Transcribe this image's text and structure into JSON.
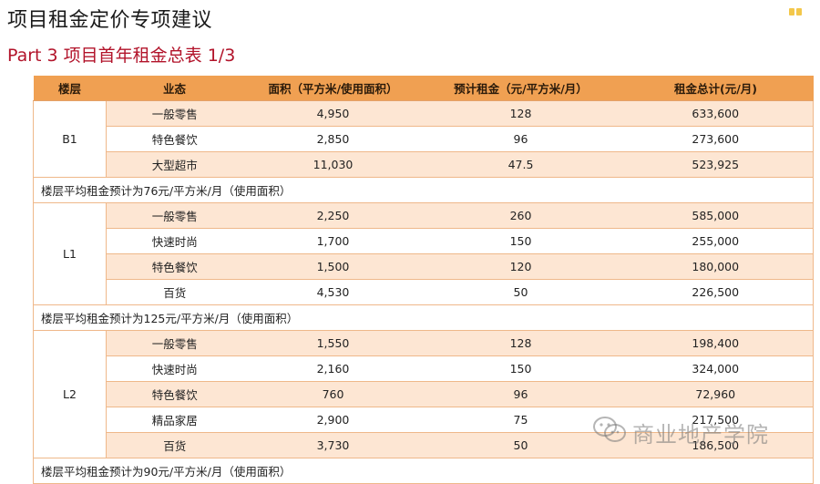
{
  "page": {
    "title": "项目租金定价专项建议",
    "subtitle": "Part 3  项目首年租金总表 1/3"
  },
  "table": {
    "headers": [
      "楼层",
      "业态",
      "面积（平方米/使用面积）",
      "预计租金（元/平方米/月）",
      "租金总计(元/月)"
    ],
    "groups": [
      {
        "floor": "B1",
        "rows": [
          {
            "type": "一般零售",
            "area": "4,950",
            "rent": "128",
            "total": "633,600"
          },
          {
            "type": "特色餐饮",
            "area": "2,850",
            "rent": "96",
            "total": "273,600"
          },
          {
            "type": "大型超市",
            "area": "11,030",
            "rent": "47.5",
            "total": "523,925"
          }
        ],
        "note": "楼层平均租金预计为76元/平方米/月（使用面积）"
      },
      {
        "floor": "L1",
        "rows": [
          {
            "type": "一般零售",
            "area": "2,250",
            "rent": "260",
            "total": "585,000"
          },
          {
            "type": "快速时尚",
            "area": "1,700",
            "rent": "150",
            "total": "255,000"
          },
          {
            "type": "特色餐饮",
            "area": "1,500",
            "rent": "120",
            "total": "180,000"
          },
          {
            "type": "百货",
            "area": "4,530",
            "rent": "50",
            "total": "226,500"
          }
        ],
        "note": "楼层平均租金预计为125元/平方米/月（使用面积）"
      },
      {
        "floor": "L2",
        "rows": [
          {
            "type": "一般零售",
            "area": "1,550",
            "rent": "128",
            "total": "198,400"
          },
          {
            "type": "快速时尚",
            "area": "2,160",
            "rent": "150",
            "total": "324,000"
          },
          {
            "type": "特色餐饮",
            "area": "760",
            "rent": "96",
            "total": "72,960"
          },
          {
            "type": "精品家居",
            "area": "2,900",
            "rent": "75",
            "total": "217,500"
          },
          {
            "type": "百货",
            "area": "3,730",
            "rent": "50",
            "total": "186,500"
          }
        ],
        "note": "楼层平均租金预计为90元/平方米/月（使用面积）"
      }
    ]
  },
  "watermark": {
    "text": "商业地产学院",
    "icon": "wechat-icon"
  },
  "colors": {
    "header_bg": "#f0a052",
    "row_alt_bg": "#fde6d3",
    "subtitle": "#b2132a",
    "border": "#efb88a"
  }
}
